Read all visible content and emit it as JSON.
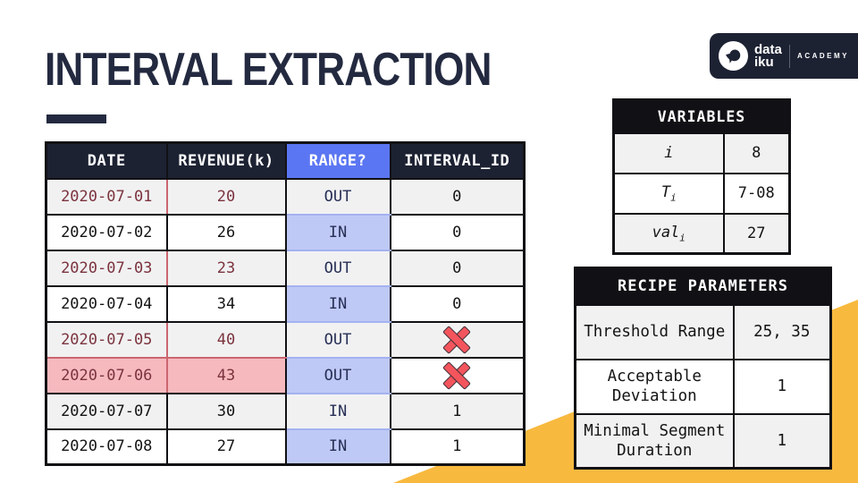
{
  "title": "INTERVAL EXTRACTION",
  "logo": {
    "brand_line1": "data",
    "brand_line2": "iku",
    "suffix": "ACADEMY"
  },
  "main_table": {
    "headers": [
      "DATE",
      "REVENUE(k)",
      "RANGE?",
      "INTERVAL_ID"
    ],
    "rows": [
      {
        "date": "2020-07-01",
        "revenue": "20",
        "range": "OUT",
        "interval_id": "0",
        "out_of_range": true,
        "excluded": false
      },
      {
        "date": "2020-07-02",
        "revenue": "26",
        "range": "IN",
        "interval_id": "0",
        "out_of_range": false,
        "excluded": false
      },
      {
        "date": "2020-07-03",
        "revenue": "23",
        "range": "OUT",
        "interval_id": "0",
        "out_of_range": true,
        "excluded": false
      },
      {
        "date": "2020-07-04",
        "revenue": "34",
        "range": "IN",
        "interval_id": "0",
        "out_of_range": false,
        "excluded": false
      },
      {
        "date": "2020-07-05",
        "revenue": "40",
        "range": "OUT",
        "interval_id": "",
        "out_of_range": true,
        "excluded": true
      },
      {
        "date": "2020-07-06",
        "revenue": "43",
        "range": "OUT",
        "interval_id": "",
        "out_of_range": true,
        "excluded": true
      },
      {
        "date": "2020-07-07",
        "revenue": "30",
        "range": "IN",
        "interval_id": "1",
        "out_of_range": false,
        "excluded": false
      },
      {
        "date": "2020-07-08",
        "revenue": "27",
        "range": "IN",
        "interval_id": "1",
        "out_of_range": false,
        "excluded": false
      }
    ]
  },
  "variables_table": {
    "title": "VARIABLES",
    "rows": [
      {
        "base": "i",
        "sub": "",
        "value": "8"
      },
      {
        "base": "T",
        "sub": "i",
        "value": "7-08"
      },
      {
        "base": "val",
        "sub": "i",
        "value": "27"
      }
    ]
  },
  "recipe_table": {
    "title": "RECIPE PARAMETERS",
    "rows": [
      {
        "name": "Threshold Range",
        "value": "25, 35"
      },
      {
        "name": "Acceptable Deviation",
        "value": "1"
      },
      {
        "name": "Minimal Segment Duration",
        "value": "1"
      }
    ]
  },
  "colors": {
    "navy": "#232a40",
    "header_navy": "#1d2233",
    "black": "#111115",
    "blue": "#5b76f2",
    "light_blue": "#bfc9f6",
    "pink": "#f6b9be",
    "pink_text": "#7b333d",
    "stripe": "#f1f1f2",
    "cross_red": "#f4555d",
    "yellow": "#f8b93f"
  }
}
